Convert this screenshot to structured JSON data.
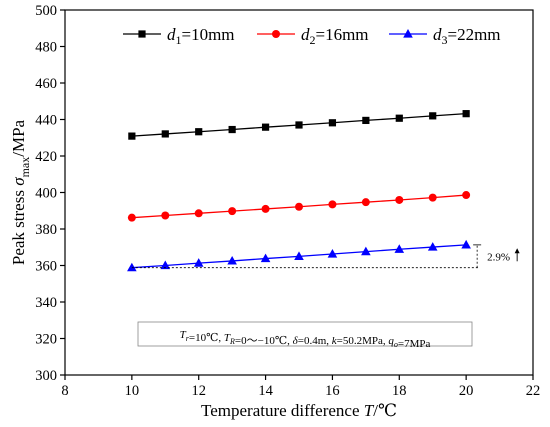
{
  "chart_data": {
    "type": "line",
    "x": [
      10,
      11,
      12,
      13,
      14,
      15,
      16,
      17,
      18,
      19,
      20
    ],
    "series": [
      {
        "name": "d1=10mm",
        "label": {
          "var": "d",
          "sub": "1",
          "rest": "=10mm"
        },
        "color": "#000000",
        "marker": "square",
        "values": [
          430.9,
          432.1,
          433.3,
          434.5,
          435.8,
          437.0,
          438.2,
          439.5,
          440.7,
          442.0,
          443.2
        ]
      },
      {
        "name": "d2=16mm",
        "label": {
          "var": "d",
          "sub": "2",
          "rest": "=16mm"
        },
        "color": "#ff0000",
        "marker": "circle",
        "values": [
          386.2,
          387.4,
          388.6,
          389.8,
          391.0,
          392.2,
          393.5,
          394.7,
          395.9,
          397.2,
          398.6
        ]
      },
      {
        "name": "d3=22mm",
        "label": {
          "var": "d",
          "sub": "3",
          "rest": "=22mm"
        },
        "color": "#0000ff",
        "marker": "triangle",
        "values": [
          358.8,
          360.0,
          361.3,
          362.5,
          363.8,
          365.0,
          366.3,
          367.6,
          368.9,
          370.1,
          371.3
        ]
      }
    ],
    "xlim": [
      8,
      22
    ],
    "ylim": [
      300,
      500
    ],
    "xticks": [
      8,
      10,
      12,
      14,
      16,
      18,
      20,
      22
    ],
    "yticks": [
      300,
      320,
      340,
      360,
      380,
      400,
      420,
      440,
      460,
      480,
      500
    ],
    "xlabel": {
      "main": "Temperature difference ",
      "var": "T",
      "unit": "/℃"
    },
    "ylabel": {
      "main": "Peak stress ",
      "var": "σ",
      "sub": "max",
      "unit": "/MPa"
    },
    "legend_position": "top",
    "annotation": {
      "text": "2.9%",
      "reference_value": 358.8,
      "at_x": 20
    },
    "note_box": {
      "parts": [
        {
          "i": "T"
        },
        {
          "sub": "r"
        },
        {
          "t": "=10℃, "
        },
        {
          "i": "T"
        },
        {
          "sub": "R"
        },
        {
          "t": "=0～−10℃, "
        },
        {
          "i": "δ"
        },
        {
          "t": "=0.4m, "
        },
        {
          "i": "k"
        },
        {
          "t": "=50.2MPa, "
        },
        {
          "i": "q"
        },
        {
          "sub": "o"
        },
        {
          "t": "=7MPa"
        }
      ]
    }
  }
}
